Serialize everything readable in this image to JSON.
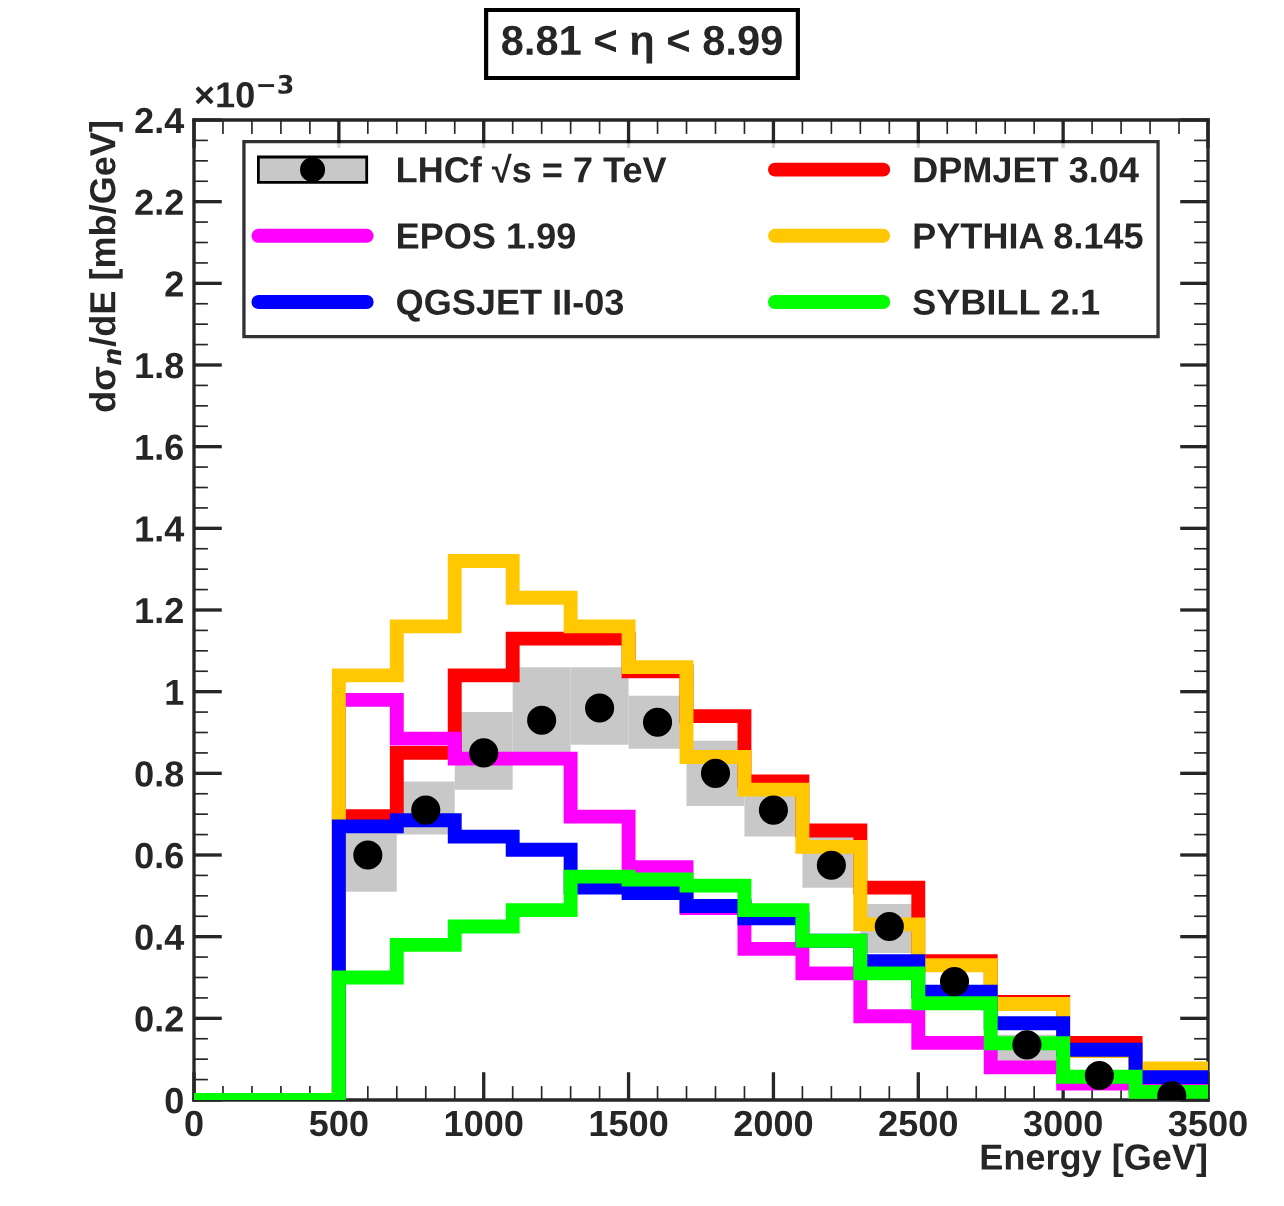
{
  "chart_data": {
    "type": "histogram",
    "title": "8.81 < η < 8.99",
    "xlabel": "Energy [GeV]",
    "ylabel": "dσ$_{n}$/dE [mb/GeV]",
    "annotations": [
      "×10$^{−3}$"
    ],
    "bins": [
      0,
      500,
      700,
      900,
      1100,
      1300,
      1500,
      1700,
      1900,
      2100,
      2300,
      2500,
      2750,
      3000,
      3250,
      3500
    ],
    "series": [
      {
        "name": "LHCf √s = 7 TeV",
        "type": "scatter",
        "color": "#000000",
        "x": [
          600,
          800,
          1000,
          1200,
          1400,
          1600,
          1800,
          2000,
          2200,
          2400,
          2625,
          2875,
          3125,
          3375
        ],
        "values": [
          0.6,
          0.71,
          0.85,
          0.93,
          0.96,
          0.925,
          0.8,
          0.71,
          0.575,
          0.425,
          0.29,
          0.135,
          0.06,
          0.01
        ],
        "errors": [
          [
            0.51,
            0.695
          ],
          [
            0.65,
            0.78
          ],
          [
            0.76,
            0.95
          ],
          [
            0.84,
            1.06
          ],
          [
            0.87,
            1.06
          ],
          [
            0.86,
            0.99
          ],
          [
            0.72,
            0.88
          ],
          [
            0.645,
            0.77
          ],
          [
            0.52,
            0.67
          ],
          [
            0.36,
            0.48
          ],
          null,
          [
            0.09,
            0.16
          ],
          null,
          null
        ]
      },
      {
        "name": "DPMJET 3.04",
        "color": "#ff0000",
        "values": [
          0,
          0.695,
          0.85,
          1.04,
          1.13,
          1.13,
          1.05,
          0.94,
          0.78,
          0.66,
          0.52,
          0.34,
          0.24,
          0.14,
          0.07
        ]
      },
      {
        "name": "EPOS 1.99",
        "color": "#ff00ff",
        "values": [
          0,
          0.98,
          0.885,
          0.836,
          0.836,
          0.694,
          0.57,
          0.47,
          0.37,
          0.31,
          0.205,
          0.14,
          0.08,
          0.04,
          0.03
        ]
      },
      {
        "name": "PYTHIA 8.145",
        "color": "#ffc800",
        "values": [
          0,
          1.04,
          1.16,
          1.32,
          1.23,
          1.16,
          1.06,
          0.84,
          0.76,
          0.62,
          0.43,
          0.33,
          0.235,
          0.12,
          0.077
        ]
      },
      {
        "name": "QGSJET II-03",
        "color": "#0000ff",
        "values": [
          0,
          0.67,
          0.685,
          0.645,
          0.613,
          0.52,
          0.507,
          0.475,
          0.445,
          0.39,
          0.34,
          0.265,
          0.188,
          0.123,
          0.056
        ]
      },
      {
        "name": "SYBILL 2.1",
        "color": "#00ff00",
        "values": [
          0,
          0.3,
          0.38,
          0.425,
          0.465,
          0.547,
          0.54,
          0.525,
          0.465,
          0.39,
          0.31,
          0.237,
          0.139,
          0.057,
          0.02
        ]
      }
    ],
    "xlim": [
      0,
      3500
    ],
    "xticks": [
      0,
      500,
      1000,
      1500,
      2000,
      2500,
      3000,
      3500
    ],
    "ylim": [
      0,
      2.4
    ],
    "yticks": [
      0,
      0.2,
      0.4,
      0.6,
      0.8,
      1,
      1.2,
      1.4,
      1.6,
      1.8,
      2,
      2.2,
      2.4
    ],
    "legend": "top",
    "grid": false
  }
}
